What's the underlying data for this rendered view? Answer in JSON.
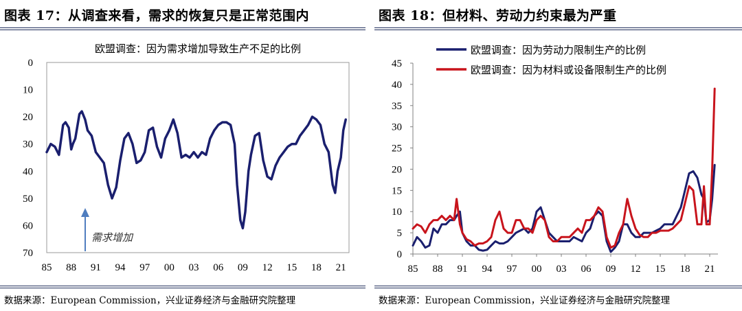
{
  "left": {
    "fig_title": "图表 17：从调查来看，需求的恢复只是正常范围内",
    "source": "数据来源：European Commission，兴业证券经济与金融研究院整理"
  },
  "right": {
    "fig_title": "图表 18：但材料、劳动力约束最为严重",
    "source": "数据来源：European Commission，兴业证券经济与金融研究院整理"
  },
  "chart_data": [
    {
      "type": "line",
      "title": "欧盟调查：因为需求增加导致生产不足的比例",
      "xlabel": "",
      "ylabel": "",
      "y_inverted": true,
      "ylim": [
        0,
        70
      ],
      "yticks": [
        0,
        10,
        20,
        30,
        40,
        50,
        60,
        70
      ],
      "xlim": [
        1985,
        2022
      ],
      "xtick_labels": [
        "85",
        "88",
        "91",
        "94",
        "97",
        "00",
        "03",
        "06",
        "09",
        "12",
        "15",
        "18",
        "21"
      ],
      "annotation": "需求增加",
      "color": "#1a1f6e",
      "series": [
        {
          "name": "欧盟调查：因为需求增加导致生产不足的比例",
          "x": [
            1985,
            1985.5,
            1986,
            1986.5,
            1987,
            1987.3,
            1987.7,
            1988,
            1988.2,
            1988.5,
            1989,
            1989.3,
            1989.7,
            1990,
            1990.5,
            1991,
            1991.5,
            1992,
            1992.5,
            1993,
            1993.5,
            1994,
            1994.5,
            1995,
            1995.5,
            1996,
            1996.5,
            1997,
            1997.5,
            1998,
            1998.5,
            1999,
            1999.5,
            2000,
            2000.5,
            2001,
            2001.5,
            2002,
            2002.5,
            2003,
            2003.5,
            2004,
            2004.5,
            2005,
            2005.5,
            2006,
            2006.5,
            2007,
            2007.5,
            2008,
            2008.3,
            2008.7,
            2009,
            2009.3,
            2009.7,
            2010,
            2010.5,
            2011,
            2011.5,
            2012,
            2012.5,
            2013,
            2013.5,
            2014,
            2014.5,
            2015,
            2015.5,
            2016,
            2016.5,
            2017,
            2017.5,
            2018,
            2018.5,
            2019,
            2019.5,
            2020,
            2020.3,
            2020.6,
            2021,
            2021.3,
            2021.6
          ],
          "y": [
            33,
            30,
            31,
            34,
            23,
            22,
            24,
            32,
            30,
            28,
            19,
            18,
            21,
            25,
            27,
            33,
            35,
            37,
            45,
            50,
            46,
            36,
            28,
            26,
            30,
            37,
            36,
            33,
            25,
            24,
            31,
            35,
            28,
            25,
            21,
            26,
            35,
            34,
            35,
            33,
            35,
            33,
            34,
            28,
            25,
            23,
            22,
            22,
            23,
            30,
            45,
            58,
            61,
            55,
            40,
            34,
            27,
            26,
            36,
            42,
            43,
            38,
            35,
            33,
            31,
            30,
            30,
            27,
            25,
            23,
            20,
            21,
            23,
            30,
            33,
            45,
            48,
            40,
            35,
            25,
            21
          ]
        }
      ]
    },
    {
      "type": "line",
      "title": "",
      "xlabel": "",
      "ylabel": "",
      "ylim": [
        0,
        45
      ],
      "yticks": [
        0,
        5,
        10,
        15,
        20,
        25,
        30,
        35,
        40,
        45
      ],
      "xlim": [
        1985,
        2022
      ],
      "xtick_labels": [
        "85",
        "88",
        "91",
        "94",
        "97",
        "00",
        "03",
        "06",
        "09",
        "12",
        "15",
        "18",
        "21"
      ],
      "legend": "top-left",
      "series": [
        {
          "name": "欧盟调查：因为劳动力限制生产的比例",
          "color": "#1a1f6e",
          "x": [
            1985,
            1985.5,
            1986,
            1986.5,
            1987,
            1987.5,
            1988,
            1988.5,
            1989,
            1989.5,
            1990,
            1990.3,
            1990.7,
            1991,
            1991.5,
            1992,
            1992.5,
            1993,
            1993.5,
            1994,
            1994.5,
            1995,
            1995.5,
            1996,
            1996.5,
            1997,
            1997.5,
            1998,
            1998.5,
            1999,
            1999.5,
            2000,
            2000.5,
            2001,
            2001.5,
            2002,
            2002.5,
            2003,
            2003.5,
            2004,
            2004.5,
            2005,
            2005.5,
            2006,
            2006.5,
            2007,
            2007.5,
            2008,
            2008.5,
            2009,
            2009.5,
            2010,
            2010.5,
            2011,
            2011.5,
            2012,
            2012.5,
            2013,
            2013.5,
            2014,
            2014.5,
            2015,
            2015.5,
            2016,
            2016.5,
            2017,
            2017.5,
            2018,
            2018.5,
            2019,
            2019.5,
            2020,
            2020.3,
            2020.6,
            2021,
            2021.3,
            2021.6
          ],
          "y": [
            2,
            4,
            3,
            1.5,
            2,
            6,
            5,
            7,
            7,
            8,
            8,
            9,
            10,
            5,
            3,
            2,
            2,
            1,
            0.8,
            1,
            2,
            3,
            2.5,
            2.5,
            3,
            4,
            5,
            5.5,
            6,
            5,
            6,
            10,
            11,
            8,
            5,
            4,
            3,
            3,
            3,
            3,
            4,
            3.5,
            3,
            5,
            6,
            9,
            10,
            9,
            3,
            0.5,
            1.5,
            3,
            7,
            7,
            5,
            4,
            4,
            5,
            5,
            5,
            5.5,
            6,
            7,
            7,
            7,
            9,
            11,
            15,
            19,
            19.5,
            18,
            14,
            13,
            7.5,
            8,
            13,
            21
          ]
        },
        {
          "name": "欧盟调查：因为材料或设备限制生产的比例",
          "color": "#c8141c",
          "x": [
            1985,
            1985.5,
            1986,
            1986.5,
            1987,
            1987.5,
            1988,
            1988.5,
            1989,
            1989.5,
            1990,
            1990.3,
            1990.7,
            1991,
            1991.5,
            1992,
            1992.5,
            1993,
            1993.5,
            1994,
            1994.5,
            1995,
            1995.5,
            1996,
            1996.5,
            1997,
            1997.5,
            1998,
            1998.5,
            1999,
            1999.5,
            2000,
            2000.5,
            2001,
            2001.5,
            2002,
            2002.5,
            2003,
            2003.5,
            2004,
            2004.5,
            2005,
            2005.5,
            2006,
            2006.5,
            2007,
            2007.5,
            2008,
            2008.5,
            2009,
            2009.5,
            2010,
            2010.5,
            2011,
            2011.5,
            2012,
            2012.5,
            2013,
            2013.5,
            2014,
            2014.5,
            2015,
            2015.5,
            2016,
            2016.5,
            2017,
            2017.5,
            2018,
            2018.5,
            2019,
            2019.5,
            2020,
            2020.3,
            2020.6,
            2021,
            2021.3,
            2021.6
          ],
          "y": [
            6,
            7,
            6.5,
            5,
            7,
            8,
            8,
            9,
            8,
            9,
            8,
            13,
            7,
            5,
            3.5,
            3,
            2,
            2.5,
            2.5,
            3,
            4,
            8,
            10,
            6,
            5,
            5,
            8,
            8,
            6,
            6,
            5,
            8,
            9,
            8,
            4,
            3,
            3,
            4,
            4,
            4,
            5,
            6,
            5,
            8,
            8,
            9,
            11,
            10,
            4,
            1.5,
            2,
            5,
            7,
            13,
            9,
            6,
            4.5,
            4,
            4,
            5,
            5,
            5.5,
            5.5,
            5.5,
            6,
            7,
            8,
            12,
            16,
            15,
            7,
            7,
            16,
            7,
            7,
            20,
            39
          ]
        }
      ]
    }
  ]
}
